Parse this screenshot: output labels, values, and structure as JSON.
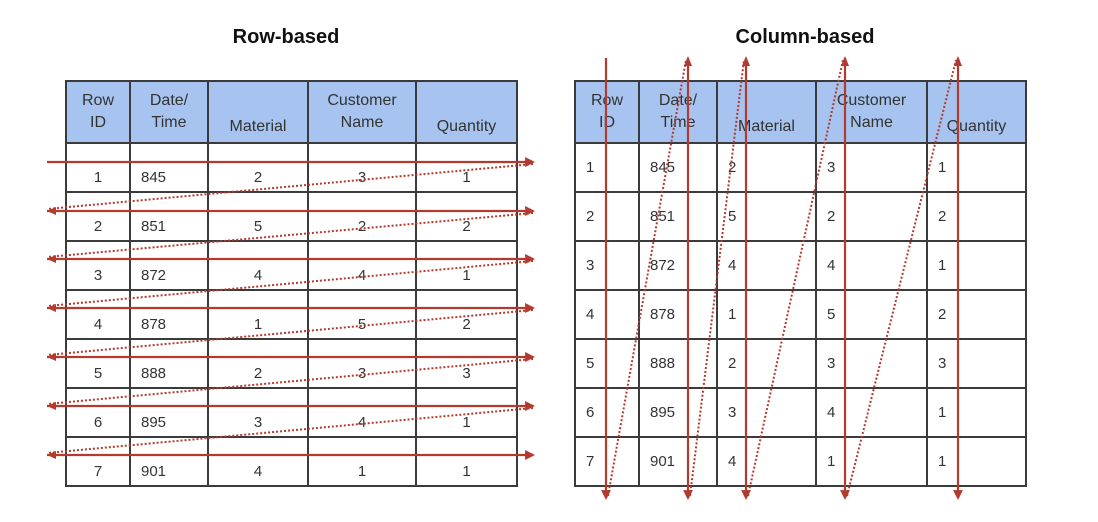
{
  "titles": {
    "row_based": "Row-based",
    "column_based": "Column-based"
  },
  "headers": [
    "Row\nID",
    "Date/\nTime",
    "Material",
    "Customer\nName",
    "Quantity"
  ],
  "rows": [
    [
      "1",
      "845",
      "2",
      "3",
      "1"
    ],
    [
      "2",
      "851",
      "5",
      "2",
      "2"
    ],
    [
      "3",
      "872",
      "4",
      "4",
      "1"
    ],
    [
      "4",
      "878",
      "1",
      "5",
      "2"
    ],
    [
      "5",
      "888",
      "2",
      "3",
      "3"
    ],
    [
      "6",
      "895",
      "3",
      "4",
      "1"
    ],
    [
      "7",
      "901",
      "4",
      "1",
      "1"
    ]
  ],
  "colors": {
    "header_fill": "#a7c3ef",
    "arrow": "#b33a2e",
    "grid_line": "#3b3b3b"
  }
}
